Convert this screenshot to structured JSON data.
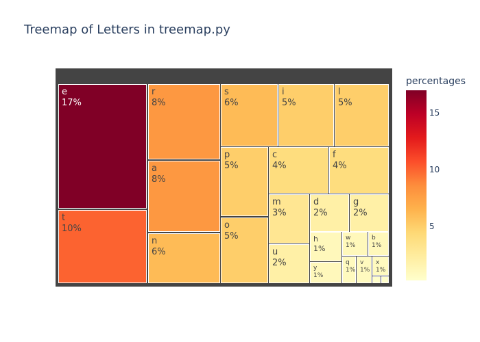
{
  "chart_data": {
    "type": "treemap",
    "title": "Treemap of Letters in treemap.py",
    "colorbar": {
      "title": "percentages",
      "range": [
        0.2,
        17
      ],
      "ticks": [
        5,
        10,
        15
      ],
      "colorscale": [
        "#ffffcc",
        "#ffeda0",
        "#fed976",
        "#feb24c",
        "#fd8d3c",
        "#fc4e2a",
        "#e31a1c",
        "#bd0026",
        "#800026"
      ]
    },
    "tiles": [
      {
        "label": "e",
        "percent": "17%",
        "value": 17
      },
      {
        "label": "t",
        "percent": "10%",
        "value": 10
      },
      {
        "label": "r",
        "percent": "8%",
        "value": 8
      },
      {
        "label": "a",
        "percent": "8%",
        "value": 8
      },
      {
        "label": "n",
        "percent": "6%",
        "value": 6
      },
      {
        "label": "s",
        "percent": "6%",
        "value": 6
      },
      {
        "label": "i",
        "percent": "5%",
        "value": 5
      },
      {
        "label": "l",
        "percent": "5%",
        "value": 5
      },
      {
        "label": "p",
        "percent": "5%",
        "value": 5
      },
      {
        "label": "o",
        "percent": "5%",
        "value": 5
      },
      {
        "label": "c",
        "percent": "4%",
        "value": 4
      },
      {
        "label": "f",
        "percent": "4%",
        "value": 4
      },
      {
        "label": "m",
        "percent": "3%",
        "value": 3
      },
      {
        "label": "d",
        "percent": "2%",
        "value": 2
      },
      {
        "label": "g",
        "percent": "2%",
        "value": 2
      },
      {
        "label": "u",
        "percent": "2%",
        "value": 2
      },
      {
        "label": "h",
        "percent": "1%",
        "value": 1
      },
      {
        "label": "w",
        "percent": "1%",
        "value": 1
      },
      {
        "label": "b",
        "percent": "1%",
        "value": 1
      },
      {
        "label": "y",
        "percent": "1%",
        "value": 1
      },
      {
        "label": "q",
        "percent": "1%",
        "value": 0.8
      },
      {
        "label": "v",
        "percent": "1%",
        "value": 0.8
      },
      {
        "label": "x",
        "percent": "1%",
        "value": 0.8
      },
      {
        "label": "",
        "percent": "",
        "value": 0.3
      },
      {
        "label": "",
        "percent": "",
        "value": 0.3
      }
    ]
  }
}
